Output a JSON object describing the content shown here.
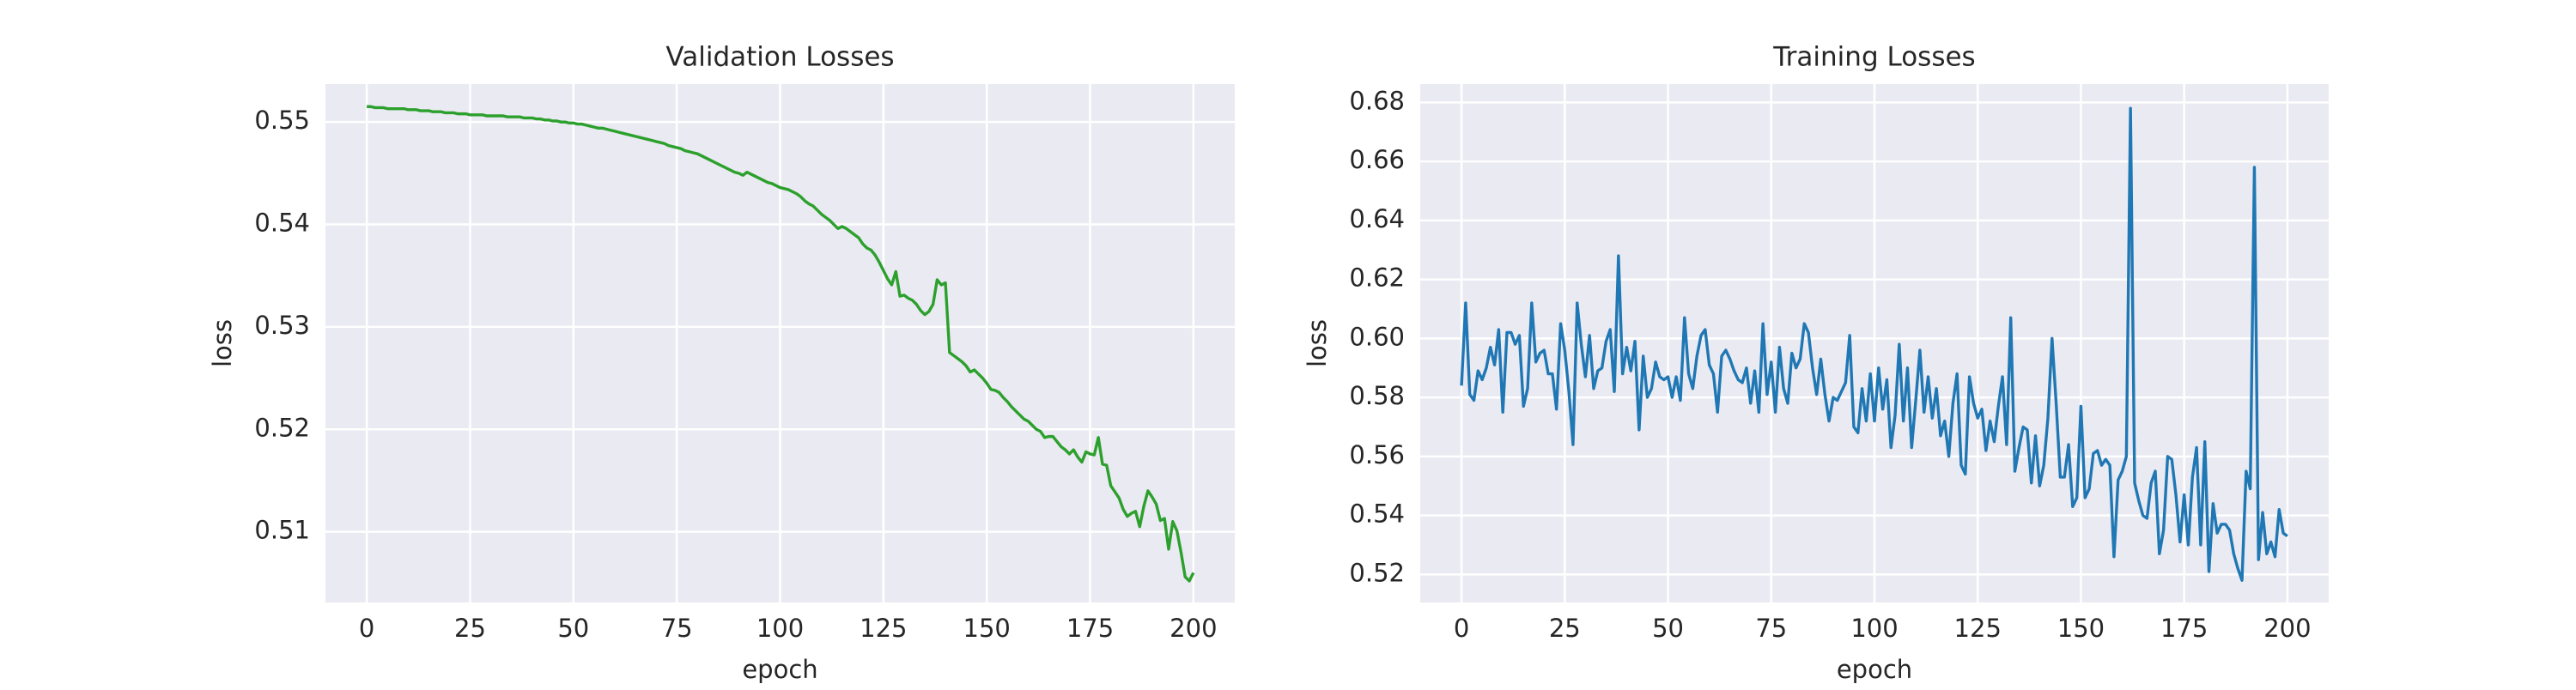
{
  "chart_data": [
    {
      "type": "line",
      "title": "Validation Losses",
      "x_label": "epoch",
      "y_label": "loss",
      "x": [
        0,
        1,
        2,
        3,
        4,
        5,
        6,
        7,
        8,
        9,
        10,
        11,
        12,
        13,
        14,
        15,
        16,
        17,
        18,
        19,
        20,
        21,
        22,
        23,
        24,
        25,
        26,
        27,
        28,
        29,
        30,
        31,
        32,
        33,
        34,
        35,
        36,
        37,
        38,
        39,
        40,
        41,
        42,
        43,
        44,
        45,
        46,
        47,
        48,
        49,
        50,
        51,
        52,
        53,
        54,
        55,
        56,
        57,
        58,
        59,
        60,
        61,
        62,
        63,
        64,
        65,
        66,
        67,
        68,
        69,
        70,
        71,
        72,
        73,
        74,
        75,
        76,
        77,
        78,
        79,
        80,
        81,
        82,
        83,
        84,
        85,
        86,
        87,
        88,
        89,
        90,
        91,
        92,
        93,
        94,
        95,
        96,
        97,
        98,
        99,
        100,
        101,
        102,
        103,
        104,
        105,
        106,
        107,
        108,
        109,
        110,
        111,
        112,
        113,
        114,
        115,
        116,
        117,
        118,
        119,
        120,
        121,
        122,
        123,
        124,
        125,
        126,
        127,
        128,
        129,
        130,
        131,
        132,
        133,
        134,
        135,
        136,
        137,
        138,
        139,
        140,
        141,
        142,
        143,
        144,
        145,
        146,
        147,
        148,
        149,
        150,
        151,
        152,
        153,
        154,
        155,
        156,
        157,
        158,
        159,
        160,
        161,
        162,
        163,
        164,
        165,
        166,
        167,
        168,
        169,
        170,
        171,
        172,
        173,
        174,
        175,
        176,
        177,
        178,
        179,
        180,
        181,
        182,
        183,
        184,
        185,
        186,
        187,
        188,
        189,
        190,
        191,
        192,
        193,
        194,
        195,
        196,
        197,
        198,
        199,
        200
      ],
      "series": [
        {
          "color": "#2ca02c",
          "values": [
            0.5515,
            0.5515,
            0.5514,
            0.5514,
            0.5514,
            0.5513,
            0.5513,
            0.5513,
            0.5513,
            0.5513,
            0.5512,
            0.5512,
            0.5512,
            0.5511,
            0.5511,
            0.5511,
            0.551,
            0.551,
            0.551,
            0.5509,
            0.5509,
            0.5509,
            0.5508,
            0.5508,
            0.5508,
            0.5507,
            0.5507,
            0.5507,
            0.5507,
            0.5506,
            0.5506,
            0.5506,
            0.5506,
            0.5506,
            0.5505,
            0.5505,
            0.5505,
            0.5505,
            0.5504,
            0.5504,
            0.5504,
            0.5503,
            0.5503,
            0.5502,
            0.5502,
            0.5501,
            0.5501,
            0.55,
            0.55,
            0.5499,
            0.5499,
            0.5498,
            0.5498,
            0.5497,
            0.5496,
            0.5495,
            0.5494,
            0.5494,
            0.5493,
            0.5492,
            0.5491,
            0.549,
            0.5489,
            0.5488,
            0.5487,
            0.5486,
            0.5485,
            0.5484,
            0.5483,
            0.5482,
            0.5481,
            0.548,
            0.5479,
            0.5477,
            0.5476,
            0.5475,
            0.5474,
            0.5472,
            0.5471,
            0.547,
            0.5469,
            0.5467,
            0.5465,
            0.5463,
            0.5461,
            0.5459,
            0.5457,
            0.5455,
            0.5453,
            0.5451,
            0.545,
            0.5448,
            0.5451,
            0.5449,
            0.5447,
            0.5445,
            0.5443,
            0.5441,
            0.544,
            0.5438,
            0.5436,
            0.5435,
            0.5434,
            0.5432,
            0.543,
            0.5427,
            0.5423,
            0.542,
            0.5418,
            0.5414,
            0.541,
            0.5407,
            0.5404,
            0.54,
            0.5396,
            0.5398,
            0.5396,
            0.5393,
            0.539,
            0.5387,
            0.5381,
            0.5377,
            0.5375,
            0.537,
            0.5363,
            0.5355,
            0.5347,
            0.5341,
            0.5354,
            0.533,
            0.5331,
            0.5328,
            0.5326,
            0.5322,
            0.5316,
            0.5312,
            0.5315,
            0.5322,
            0.5346,
            0.5341,
            0.5343,
            0.5275,
            0.5272,
            0.5269,
            0.5266,
            0.5262,
            0.5256,
            0.5258,
            0.5254,
            0.525,
            0.5245,
            0.5239,
            0.5238,
            0.5236,
            0.5231,
            0.5227,
            0.5222,
            0.5218,
            0.5214,
            0.521,
            0.5208,
            0.5204,
            0.52,
            0.5198,
            0.5192,
            0.5193,
            0.5193,
            0.5188,
            0.5183,
            0.518,
            0.5176,
            0.518,
            0.5173,
            0.5168,
            0.5178,
            0.5176,
            0.5175,
            0.5192,
            0.5166,
            0.5165,
            0.5145,
            0.5139,
            0.5133,
            0.5122,
            0.5115,
            0.5118,
            0.512,
            0.5105,
            0.5125,
            0.514,
            0.5134,
            0.5127,
            0.5111,
            0.5113,
            0.5083,
            0.511,
            0.5101,
            0.508,
            0.5056,
            0.5052,
            0.506
          ]
        }
      ],
      "xlim": [
        -10,
        210
      ],
      "xticks": [
        0,
        25,
        50,
        75,
        100,
        125,
        150,
        175,
        200
      ],
      "ylim": [
        0.5031,
        0.5537
      ],
      "yticks": [
        0.51,
        0.52,
        0.53,
        0.54,
        0.55
      ],
      "grid": true,
      "background": "#eaeaf2"
    },
    {
      "type": "line",
      "title": "Training Losses",
      "x_label": "epoch",
      "y_label": "loss",
      "x": [
        0,
        1,
        2,
        3,
        4,
        5,
        6,
        7,
        8,
        9,
        10,
        11,
        12,
        13,
        14,
        15,
        16,
        17,
        18,
        19,
        20,
        21,
        22,
        23,
        24,
        25,
        26,
        27,
        28,
        29,
        30,
        31,
        32,
        33,
        34,
        35,
        36,
        37,
        38,
        39,
        40,
        41,
        42,
        43,
        44,
        45,
        46,
        47,
        48,
        49,
        50,
        51,
        52,
        53,
        54,
        55,
        56,
        57,
        58,
        59,
        60,
        61,
        62,
        63,
        64,
        65,
        66,
        67,
        68,
        69,
        70,
        71,
        72,
        73,
        74,
        75,
        76,
        77,
        78,
        79,
        80,
        81,
        82,
        83,
        84,
        85,
        86,
        87,
        88,
        89,
        90,
        91,
        92,
        93,
        94,
        95,
        96,
        97,
        98,
        99,
        100,
        101,
        102,
        103,
        104,
        105,
        106,
        107,
        108,
        109,
        110,
        111,
        112,
        113,
        114,
        115,
        116,
        117,
        118,
        119,
        120,
        121,
        122,
        123,
        124,
        125,
        126,
        127,
        128,
        129,
        130,
        131,
        132,
        133,
        134,
        135,
        136,
        137,
        138,
        139,
        140,
        141,
        142,
        143,
        144,
        145,
        146,
        147,
        148,
        149,
        150,
        151,
        152,
        153,
        154,
        155,
        156,
        157,
        158,
        159,
        160,
        161,
        162,
        163,
        164,
        165,
        166,
        167,
        168,
        169,
        170,
        171,
        172,
        173,
        174,
        175,
        176,
        177,
        178,
        179,
        180,
        181,
        182,
        183,
        184,
        185,
        186,
        187,
        188,
        189,
        190,
        191,
        192,
        193,
        194,
        195,
        196,
        197,
        198,
        199,
        200
      ],
      "series": [
        {
          "color": "#1f77b4",
          "values": [
            0.584,
            0.612,
            0.581,
            0.579,
            0.589,
            0.586,
            0.59,
            0.597,
            0.591,
            0.603,
            0.575,
            0.602,
            0.602,
            0.598,
            0.601,
            0.577,
            0.583,
            0.612,
            0.592,
            0.595,
            0.596,
            0.588,
            0.588,
            0.576,
            0.605,
            0.596,
            0.582,
            0.564,
            0.612,
            0.598,
            0.587,
            0.601,
            0.583,
            0.589,
            0.59,
            0.599,
            0.603,
            0.582,
            0.628,
            0.588,
            0.597,
            0.589,
            0.599,
            0.569,
            0.594,
            0.58,
            0.583,
            0.592,
            0.587,
            0.586,
            0.587,
            0.58,
            0.587,
            0.579,
            0.607,
            0.588,
            0.583,
            0.594,
            0.601,
            0.603,
            0.591,
            0.588,
            0.575,
            0.594,
            0.596,
            0.593,
            0.589,
            0.586,
            0.585,
            0.59,
            0.578,
            0.589,
            0.575,
            0.605,
            0.581,
            0.592,
            0.575,
            0.597,
            0.583,
            0.578,
            0.595,
            0.59,
            0.593,
            0.605,
            0.602,
            0.59,
            0.581,
            0.593,
            0.581,
            0.572,
            0.58,
            0.579,
            0.582,
            0.585,
            0.601,
            0.57,
            0.568,
            0.583,
            0.572,
            0.588,
            0.572,
            0.59,
            0.576,
            0.586,
            0.563,
            0.574,
            0.598,
            0.572,
            0.59,
            0.563,
            0.579,
            0.596,
            0.575,
            0.587,
            0.573,
            0.583,
            0.567,
            0.572,
            0.56,
            0.578,
            0.588,
            0.557,
            0.554,
            0.587,
            0.578,
            0.573,
            0.576,
            0.562,
            0.572,
            0.565,
            0.577,
            0.587,
            0.564,
            0.607,
            0.555,
            0.563,
            0.57,
            0.569,
            0.551,
            0.567,
            0.55,
            0.557,
            0.573,
            0.6,
            0.578,
            0.553,
            0.553,
            0.564,
            0.543,
            0.546,
            0.577,
            0.546,
            0.549,
            0.561,
            0.562,
            0.557,
            0.559,
            0.557,
            0.526,
            0.552,
            0.555,
            0.56,
            0.678,
            0.551,
            0.545,
            0.54,
            0.539,
            0.551,
            0.555,
            0.527,
            0.535,
            0.56,
            0.559,
            0.547,
            0.531,
            0.547,
            0.53,
            0.553,
            0.563,
            0.53,
            0.565,
            0.521,
            0.544,
            0.534,
            0.537,
            0.537,
            0.535,
            0.527,
            0.522,
            0.518,
            0.555,
            0.549,
            0.658,
            0.525,
            0.541,
            0.527,
            0.531,
            0.526,
            0.542,
            0.534,
            0.533
          ]
        }
      ],
      "xlim": [
        -10,
        210
      ],
      "xticks": [
        0,
        25,
        50,
        75,
        100,
        125,
        150,
        175,
        200
      ],
      "ylim": [
        0.5105,
        0.6862
      ],
      "yticks": [
        0.52,
        0.54,
        0.56,
        0.58,
        {
          "value": 0.6,
          "label": "0.60"
        },
        0.62,
        0.64,
        0.66,
        0.68
      ],
      "grid": true,
      "background": "#eaeaf2"
    }
  ]
}
